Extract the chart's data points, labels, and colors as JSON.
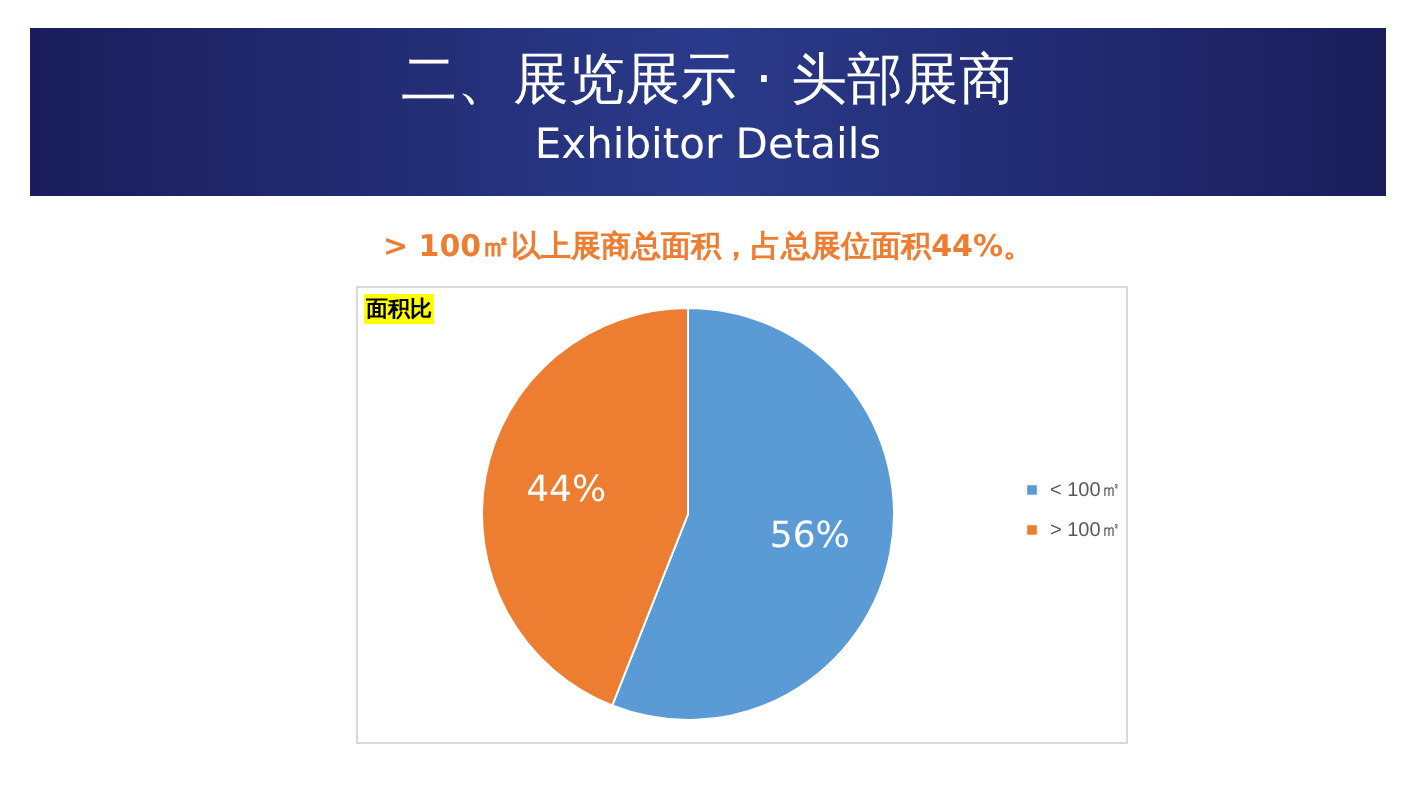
{
  "chart_data": {
    "type": "pie",
    "title": "面积比",
    "annotations": [
      "二、展览展示 · 头部展商",
      "Exhibitor Details",
      "> 100㎡以上展商总面积，占总展位面积44%。"
    ],
    "categories": [
      "< 100㎡",
      "> 100㎡"
    ],
    "values": [
      56,
      44
    ],
    "colors": [
      "#5b9bd5",
      "#ed7d31"
    ],
    "value_labels": [
      "56%",
      "44%"
    ],
    "legend": "right"
  }
}
